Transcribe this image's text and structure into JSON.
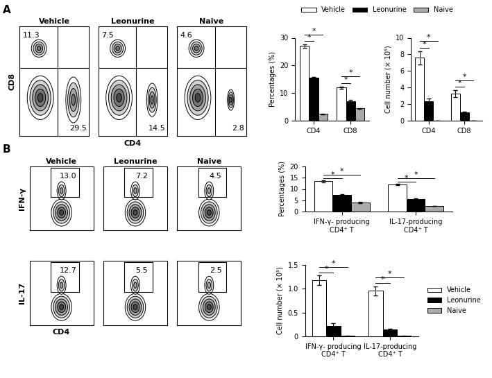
{
  "chart_data": [
    {
      "type": "contour",
      "panel": "A",
      "title": "Vehicle",
      "ylabel": "CD8",
      "annotations": [
        "11.3",
        "29.5"
      ],
      "tick_labels": false
    },
    {
      "type": "contour",
      "title": "Leonurine",
      "xlabel": "CD4",
      "annotations": [
        "7.5",
        "14.5"
      ],
      "tick_labels": false
    },
    {
      "type": "contour",
      "title": "Naive",
      "annotations": [
        "4.6",
        "2.8"
      ],
      "tick_labels": false
    },
    {
      "type": "bar",
      "ylabel": "Percentages (%)",
      "categories": [
        "CD4",
        "CD8"
      ],
      "series": [
        {
          "name": "Vehicle",
          "color": "#ffffff",
          "values": [
            27,
            12
          ],
          "errors": [
            0.6,
            0.4
          ]
        },
        {
          "name": "Leonurine",
          "color": "#000000",
          "values": [
            15.5,
            7.2
          ],
          "errors": [
            0.3,
            0.3
          ]
        },
        {
          "name": "Naive",
          "color": "#aaaaaa",
          "values": [
            2.5,
            4.5
          ],
          "errors": [
            0.2,
            0.2
          ]
        }
      ],
      "ylim": [
        0,
        30
      ],
      "yticks": [
        0,
        10,
        20,
        30
      ],
      "legend": "upper center",
      "significance": [
        {
          "category": "CD4",
          "pair": [
            "Vehicle",
            "Leonurine"
          ],
          "label": "*"
        },
        {
          "category": "CD4",
          "pair": [
            "Vehicle",
            "Naive"
          ],
          "label": "*"
        },
        {
          "category": "CD8",
          "pair": [
            "Vehicle",
            "Leonurine"
          ],
          "label": "*"
        },
        {
          "category": "CD8",
          "pair": [
            "Vehicle",
            "Naive"
          ],
          "label": "*"
        }
      ]
    },
    {
      "type": "bar",
      "ylabel": "Cell number (× 10⁵)",
      "categories": [
        "CD4",
        "CD8"
      ],
      "series": [
        {
          "name": "Vehicle",
          "color": "#ffffff",
          "values": [
            7.6,
            3.3
          ],
          "errors": [
            0.8,
            0.4
          ]
        },
        {
          "name": "Leonurine",
          "color": "#000000",
          "values": [
            2.4,
            1.0
          ],
          "errors": [
            0.3,
            0.15
          ]
        },
        {
          "name": "Naive",
          "color": "#aaaaaa",
          "values": [
            0.05,
            0.05
          ],
          "errors": [
            0.02,
            0.02
          ]
        }
      ],
      "ylim": [
        0,
        10
      ],
      "yticks": [
        0,
        2,
        4,
        6,
        8,
        10
      ],
      "significance": [
        {
          "category": "CD4",
          "pair": [
            "Vehicle",
            "Leonurine"
          ],
          "label": "*"
        },
        {
          "category": "CD4",
          "pair": [
            "Vehicle",
            "Naive"
          ],
          "label": "*"
        },
        {
          "category": "CD8",
          "pair": [
            "Vehicle",
            "Leonurine"
          ],
          "label": "*"
        },
        {
          "category": "CD8",
          "pair": [
            "Vehicle",
            "Naive"
          ],
          "label": "*"
        }
      ]
    },
    {
      "type": "contour",
      "panel": "B",
      "title": "Vehicle",
      "ylabel": "IFN-γ",
      "annotations": [
        "13.0"
      ],
      "tick_labels": false
    },
    {
      "type": "contour",
      "title": "Leonurine",
      "annotations": [
        "7.2"
      ],
      "tick_labels": false
    },
    {
      "type": "contour",
      "title": "Naive",
      "annotations": [
        "4.5"
      ],
      "tick_labels": false
    },
    {
      "type": "contour",
      "ylabel": "IL-17",
      "xlabel": "CD4",
      "annotations": [
        "12.7"
      ],
      "tick_labels": false
    },
    {
      "type": "contour",
      "annotations": [
        "5.5"
      ],
      "tick_labels": false
    },
    {
      "type": "contour",
      "annotations": [
        "2.5"
      ],
      "tick_labels": false
    },
    {
      "type": "bar",
      "ylabel": "Percentages (%)",
      "categories": [
        "IFN-γ- producing\nCD4⁺ T",
        "IL-17-producing\nCD4⁺ T"
      ],
      "series": [
        {
          "name": "Vehicle",
          "color": "#ffffff",
          "values": [
            13.4,
            12.0
          ],
          "errors": [
            0.5,
            0.3
          ]
        },
        {
          "name": "Leonurine",
          "color": "#000000",
          "values": [
            7.3,
            5.5
          ],
          "errors": [
            0.3,
            0.4
          ]
        },
        {
          "name": "Naive",
          "color": "#aaaaaa",
          "values": [
            4.0,
            2.5
          ],
          "errors": [
            0.2,
            0.1
          ]
        }
      ],
      "ylim": [
        0,
        20
      ],
      "yticks": [
        0,
        5,
        10,
        15,
        20
      ],
      "significance": [
        {
          "category": "IFN-γ- producing\nCD4⁺ T",
          "pair": [
            "Vehicle",
            "Leonurine"
          ],
          "label": "*"
        },
        {
          "category": "IFN-γ- producing\nCD4⁺ T",
          "pair": [
            "Vehicle",
            "Naive"
          ],
          "label": "*"
        },
        {
          "category": "IL-17-producing\nCD4⁺ T",
          "pair": [
            "Vehicle",
            "Leonurine"
          ],
          "label": "*"
        },
        {
          "category": "IL-17-producing\nCD4⁺ T",
          "pair": [
            "Vehicle",
            "Naive"
          ],
          "label": "*"
        }
      ]
    },
    {
      "type": "bar",
      "ylabel": "Cell number (× 10⁵)",
      "categories": [
        "IFN-γ- producing\nCD4⁺ T",
        "IL-17-producing\nCD4⁺ T"
      ],
      "series": [
        {
          "name": "Vehicle",
          "color": "#ffffff",
          "values": [
            1.17,
            0.95
          ],
          "errors": [
            0.1,
            0.1
          ]
        },
        {
          "name": "Leonurine",
          "color": "#000000",
          "values": [
            0.22,
            0.14
          ],
          "errors": [
            0.05,
            0.02
          ]
        },
        {
          "name": "Naive",
          "color": "#aaaaaa",
          "values": [
            0.01,
            0.01
          ],
          "errors": [
            0.005,
            0.005
          ]
        }
      ],
      "ylim": [
        0,
        1.5
      ],
      "yticks": [
        0,
        0.5,
        {
          "value": 1.0,
          "label": "1.0"
        },
        1.5
      ],
      "legend": "right",
      "significance": [
        {
          "category": "IFN-γ- producing\nCD4⁺ T",
          "pair": [
            "Vehicle",
            "Leonurine"
          ],
          "label": "*"
        },
        {
          "category": "IFN-γ- producing\nCD4⁺ T",
          "pair": [
            "Vehicle",
            "Naive"
          ],
          "label": "*"
        },
        {
          "category": "IL-17-producing\nCD4⁺ T",
          "pair": [
            "Vehicle",
            "Leonurine"
          ],
          "label": "*"
        },
        {
          "category": "IL-17-producing\nCD4⁺ T",
          "pair": [
            "Vehicle",
            "Naive"
          ],
          "label": "*"
        }
      ]
    }
  ]
}
